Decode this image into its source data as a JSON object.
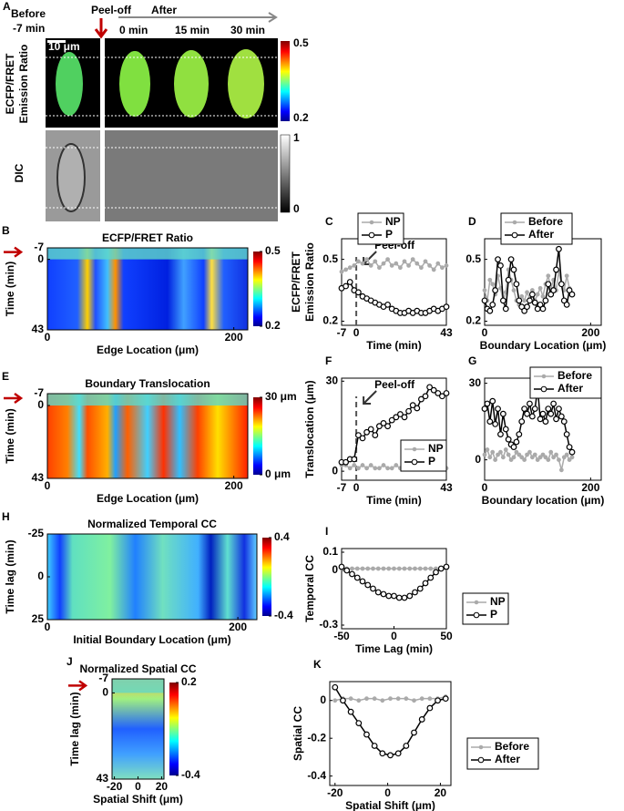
{
  "panel_a": {
    "label": "A",
    "before": [
      "Before",
      "-7 min"
    ],
    "peel_off": "Peel-off",
    "after": "After",
    "times": [
      "0 min",
      "15 min",
      "30 min"
    ],
    "scale_bar": "10 μm",
    "ylabel": [
      "ECFP/FRET",
      "Emission Ratio"
    ],
    "dic_label": "DIC",
    "ratio_cticks": [
      "0.5",
      "0.2"
    ],
    "dic_cticks": [
      "1",
      "0"
    ]
  },
  "chart_data": [
    {
      "type": "heatmap",
      "panel": "B",
      "title": "ECFP/FRET Ratio",
      "xlabel": "Edge Location (μm)",
      "ylabel": "Time (min)",
      "xlim": [
        0,
        215
      ],
      "ylim": [
        -7,
        43
      ],
      "y_direction": "down",
      "xticks": [
        0,
        200
      ],
      "yticks": [
        -7,
        0,
        43
      ],
      "clim": [
        0.2,
        0.5
      ],
      "cticks": [
        0.5,
        0.2
      ]
    },
    {
      "type": "line",
      "panel": "C",
      "xlabel": "Time (min)",
      "ylabel": [
        "ECFP/FRET",
        "Emission Ratio"
      ],
      "annotation": "Peel-off",
      "xlim": [
        -7,
        43
      ],
      "ylim": [
        0.18,
        0.6
      ],
      "xticks": [
        -7,
        0,
        43
      ],
      "yticks": [
        0.2,
        0.5
      ],
      "legend": "top-left",
      "x": [
        -7,
        -5,
        -3,
        -1,
        1,
        3,
        5,
        7,
        9,
        11,
        13,
        15,
        17,
        19,
        21,
        23,
        25,
        27,
        29,
        31,
        33,
        35,
        37,
        39,
        41,
        43
      ],
      "series": [
        {
          "name": "NP",
          "color": "#aaaaaa",
          "marker": "dot",
          "values": [
            0.44,
            0.45,
            0.46,
            0.47,
            0.49,
            0.48,
            0.5,
            0.47,
            0.49,
            0.46,
            0.48,
            0.5,
            0.47,
            0.48,
            0.46,
            0.49,
            0.47,
            0.5,
            0.48,
            0.46,
            0.49,
            0.47,
            0.45,
            0.48,
            0.46,
            0.47
          ]
        },
        {
          "name": "P",
          "color": "#000000",
          "marker": "circle",
          "values": [
            0.36,
            0.37,
            0.39,
            0.35,
            0.34,
            0.32,
            0.31,
            0.3,
            0.29,
            0.28,
            0.27,
            0.28,
            0.26,
            0.25,
            0.24,
            0.24,
            0.25,
            0.24,
            0.25,
            0.24,
            0.24,
            0.25,
            0.26,
            0.25,
            0.26,
            0.27
          ]
        }
      ]
    },
    {
      "type": "line",
      "panel": "D",
      "xlabel": "Boundary Location (μm)",
      "xlim": [
        0,
        220
      ],
      "ylim": [
        0.18,
        0.6
      ],
      "xticks": [
        0,
        200
      ],
      "yticks": [
        0.2,
        0.5
      ],
      "legend": "top-left",
      "x": [
        0,
        5,
        10,
        15,
        20,
        25,
        30,
        35,
        40,
        45,
        50,
        55,
        60,
        65,
        70,
        75,
        80,
        85,
        90,
        95,
        100,
        105,
        110,
        115,
        120,
        125,
        130,
        135,
        140,
        145,
        150,
        155,
        160,
        165
      ],
      "series": [
        {
          "name": "Before",
          "color": "#aaaaaa",
          "marker": "dot",
          "values": [
            0.35,
            0.3,
            0.4,
            0.38,
            0.33,
            0.42,
            0.36,
            0.3,
            0.34,
            0.45,
            0.4,
            0.35,
            0.3,
            0.28,
            0.32,
            0.3,
            0.34,
            0.31,
            0.35,
            0.3,
            0.33,
            0.36,
            0.32,
            0.38,
            0.42,
            0.36,
            0.4,
            0.35,
            0.44,
            0.38,
            0.35,
            0.42,
            0.36,
            0.33
          ]
        },
        {
          "name": "After",
          "color": "#000000",
          "marker": "circle",
          "values": [
            0.3,
            0.26,
            0.25,
            0.28,
            0.35,
            0.5,
            0.47,
            0.3,
            0.26,
            0.4,
            0.5,
            0.45,
            0.38,
            0.3,
            0.27,
            0.25,
            0.27,
            0.3,
            0.33,
            0.29,
            0.26,
            0.28,
            0.26,
            0.3,
            0.38,
            0.33,
            0.35,
            0.45,
            0.55,
            0.38,
            0.3,
            0.28,
            0.35,
            0.33
          ]
        }
      ]
    },
    {
      "type": "heatmap",
      "panel": "E",
      "title": "Boundary Translocation",
      "xlabel": "Edge Location (μm)",
      "ylabel": "Time (min)",
      "xlim": [
        0,
        215
      ],
      "ylim": [
        -7,
        43
      ],
      "y_direction": "down",
      "xticks": [
        0,
        200
      ],
      "yticks": [
        -7,
        0,
        43
      ],
      "clim": [
        0,
        30
      ],
      "cticks": [
        {
          "value": 30,
          "label": "30 μm"
        },
        {
          "value": 0,
          "label": "0 μm"
        }
      ]
    },
    {
      "type": "line",
      "panel": "F",
      "xlabel": "Time (min)",
      "ylabel": [
        "Translocation (μm)"
      ],
      "annotation": "Peel-off",
      "xlim": [
        -7,
        43
      ],
      "ylim": [
        -3,
        31
      ],
      "xticks": [
        -7,
        0,
        43
      ],
      "yticks": [
        0,
        30
      ],
      "legend": "bottom-right",
      "x": [
        -7,
        -5,
        -3,
        -1,
        1,
        3,
        5,
        7,
        9,
        11,
        13,
        15,
        17,
        19,
        21,
        23,
        25,
        27,
        29,
        31,
        33,
        35,
        37,
        39,
        41,
        43
      ],
      "series": [
        {
          "name": "NP",
          "color": "#aaaaaa",
          "marker": "dot",
          "values": [
            2,
            2,
            1,
            2,
            1,
            2,
            1,
            2,
            1,
            1,
            2,
            1,
            1,
            2,
            1,
            1,
            2,
            1,
            1,
            1,
            2,
            1,
            1,
            1,
            1,
            1
          ]
        },
        {
          "name": "P",
          "color": "#000000",
          "marker": "circle",
          "values": [
            3,
            3,
            4,
            4,
            12,
            11,
            13,
            14,
            12,
            15,
            16,
            15,
            17,
            18,
            19,
            18,
            20,
            22,
            21,
            24,
            25,
            28,
            27,
            26,
            25,
            26
          ]
        }
      ]
    },
    {
      "type": "line",
      "panel": "G",
      "xlabel": "Boundary location (μm)",
      "xlim": [
        0,
        220
      ],
      "ylim": [
        -8,
        32
      ],
      "xticks": [
        0,
        200
      ],
      "yticks": [
        0,
        30
      ],
      "legend": "top-right",
      "x": [
        0,
        5,
        10,
        15,
        20,
        25,
        30,
        35,
        40,
        45,
        50,
        55,
        60,
        65,
        70,
        75,
        80,
        85,
        90,
        95,
        100,
        105,
        110,
        115,
        120,
        125,
        130,
        135,
        140,
        145,
        150,
        155,
        160,
        165
      ],
      "series": [
        {
          "name": "Before",
          "color": "#aaaaaa",
          "marker": "dot",
          "values": [
            2,
            4,
            1,
            3,
            0,
            2,
            3,
            1,
            4,
            2,
            0,
            1,
            3,
            2,
            1,
            0,
            2,
            3,
            1,
            2,
            0,
            1,
            2,
            1,
            0,
            3,
            1,
            2,
            0,
            -4,
            1,
            2,
            0,
            1
          ]
        },
        {
          "name": "After",
          "color": "#000000",
          "marker": "circle",
          "values": [
            20,
            22,
            15,
            23,
            14,
            20,
            10,
            18,
            12,
            8,
            6,
            5,
            7,
            10,
            15,
            20,
            18,
            22,
            17,
            20,
            28,
            16,
            18,
            15,
            20,
            18,
            22,
            16,
            20,
            17,
            15,
            10,
            5,
            3
          ]
        }
      ]
    },
    {
      "type": "heatmap",
      "panel": "H",
      "title": "Normalized Temporal CC",
      "xlabel": "Initial Boundary Location (μm)",
      "ylabel": "Time lag (min)",
      "xlim": [
        0,
        220
      ],
      "ylim": [
        -25,
        25
      ],
      "y_direction": "down",
      "xticks": [
        0,
        200
      ],
      "yticks": [
        -25,
        0,
        25
      ],
      "clim": [
        -0.4,
        0.4
      ],
      "cticks": [
        0.4,
        -0.4
      ]
    },
    {
      "type": "line",
      "panel": "I",
      "xlabel": "Time Lag (min)",
      "ylabel": [
        "Temporal CC"
      ],
      "xlim": [
        -50,
        50
      ],
      "ylim": [
        -0.32,
        0.12
      ],
      "xticks": [
        -50,
        0,
        50
      ],
      "yticks": [
        0.1,
        0,
        -0.3
      ],
      "legend": "outside-right",
      "x": [
        -50,
        -45,
        -40,
        -35,
        -30,
        -25,
        -20,
        -15,
        -10,
        -5,
        0,
        5,
        10,
        15,
        20,
        25,
        30,
        35,
        40,
        45,
        50
      ],
      "series": [
        {
          "name": "NP",
          "color": "#aaaaaa",
          "marker": "dot",
          "values": [
            0.01,
            0.01,
            0.01,
            0.01,
            0.01,
            0.01,
            0.01,
            0.01,
            0.01,
            0.01,
            0.01,
            0.01,
            0.01,
            0.01,
            0.01,
            0.01,
            0.01,
            0.01,
            0.01,
            0.01,
            0.01
          ]
        },
        {
          "name": "P",
          "color": "#000000",
          "marker": "circle",
          "values": [
            0.02,
            0.0,
            -0.02,
            -0.04,
            -0.06,
            -0.08,
            -0.1,
            -0.12,
            -0.13,
            -0.14,
            -0.14,
            -0.15,
            -0.15,
            -0.14,
            -0.12,
            -0.1,
            -0.07,
            -0.04,
            -0.01,
            0.01,
            0.02
          ]
        }
      ]
    },
    {
      "type": "heatmap",
      "panel": "J",
      "title": "Normalized Spatial CC",
      "xlabel": "Spatial Shift (μm)",
      "ylabel": "Time lag (min)",
      "xlim": [
        -22,
        22
      ],
      "ylim": [
        -7,
        43
      ],
      "y_direction": "down",
      "xticks": [
        -20,
        0,
        20
      ],
      "yticks": [
        -7,
        0,
        43
      ],
      "clim": [
        -0.4,
        0.2
      ],
      "cticks": [
        0.2,
        -0.4
      ]
    },
    {
      "type": "line",
      "panel": "K",
      "xlabel": "Spatial Shift (μm)",
      "ylabel": [
        "Spatial CC"
      ],
      "xlim": [
        -22,
        24
      ],
      "ylim": [
        -0.45,
        0.1
      ],
      "xticks": [
        -20,
        0,
        20
      ],
      "yticks": [
        0,
        -0.2,
        -0.4
      ],
      "legend": "outside-right",
      "x": [
        -20,
        -17,
        -14,
        -11,
        -8,
        -5,
        -2,
        1,
        4,
        7,
        10,
        13,
        16,
        19,
        22
      ],
      "series": [
        {
          "name": "Before",
          "color": "#aaaaaa",
          "marker": "dot",
          "values": [
            0.0,
            0.01,
            0.01,
            0.0,
            0.01,
            0.01,
            0.0,
            0.01,
            0.01,
            0.01,
            0.0,
            0.01,
            0.01,
            0.01,
            0.02
          ]
        },
        {
          "name": "After",
          "color": "#000000",
          "marker": "circle",
          "values": [
            0.07,
            0.0,
            -0.06,
            -0.12,
            -0.18,
            -0.24,
            -0.28,
            -0.29,
            -0.28,
            -0.24,
            -0.17,
            -0.1,
            -0.04,
            0.0,
            0.01
          ]
        }
      ]
    }
  ]
}
